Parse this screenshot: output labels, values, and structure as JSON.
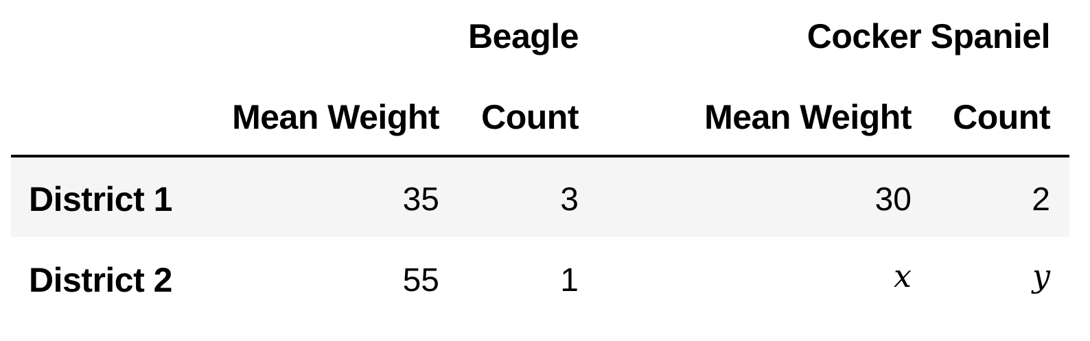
{
  "table": {
    "column_groups": [
      "Beagle",
      "Cocker Spaniel"
    ],
    "sub_columns": [
      "Mean Weight",
      "Count",
      "Mean Weight",
      "Count"
    ],
    "rows": [
      {
        "label": "District 1",
        "cells": [
          "35",
          "3",
          "30",
          "2"
        ]
      },
      {
        "label": "District 2",
        "cells": [
          "55",
          "1",
          "x",
          "y"
        ]
      }
    ]
  }
}
